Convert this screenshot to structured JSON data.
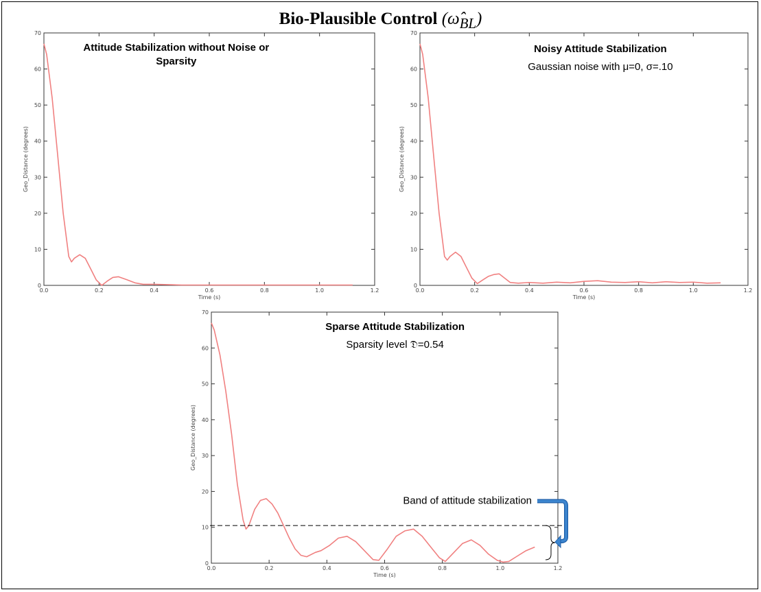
{
  "page": {
    "title_main": "Bio-Plausible Control",
    "title_symbol": "(ω̂",
    "title_subscript": "BL",
    "title_close": ")"
  },
  "chart_data": [
    {
      "type": "line",
      "title": "Attitude Stabilization without Noise or",
      "title_line2": "Sparsity",
      "subtitle": "",
      "xlabel": "Time (s)",
      "ylabel": "Geo_Distance (degrees)",
      "xlim": [
        0,
        1.2
      ],
      "ylim": [
        0,
        70
      ],
      "x_ticks": [
        "0.0",
        "0.2",
        "0.4",
        "0.6",
        "0.8",
        "1.0",
        "1.2"
      ],
      "y_ticks": [
        "0",
        "10",
        "20",
        "30",
        "40",
        "50",
        "60",
        "70"
      ],
      "grid": false,
      "series": [
        {
          "color": "#f08080",
          "x": [
            0,
            0.01,
            0.03,
            0.05,
            0.07,
            0.09,
            0.1,
            0.11,
            0.13,
            0.15,
            0.17,
            0.19,
            0.21,
            0.23,
            0.25,
            0.27,
            0.3,
            0.33,
            0.36,
            0.4,
            0.45,
            0.5,
            0.6,
            0.7,
            0.8,
            0.9,
            1.0,
            1.12
          ],
          "y": [
            67,
            64,
            52,
            36,
            20,
            8,
            6.5,
            7.5,
            8.5,
            7.5,
            4.5,
            1.5,
            0,
            1.2,
            2.2,
            2.4,
            1.6,
            0.7,
            0.3,
            0.3,
            0.2,
            0.1,
            0.1,
            0.1,
            0.1,
            0.1,
            0.1,
            0.1
          ]
        }
      ]
    },
    {
      "type": "line",
      "title": "Noisy Attitude Stabilization",
      "title_line2": "",
      "subtitle": "Gaussian noise with μ=0, σ=.10",
      "xlabel": "Time (s)",
      "ylabel": "Geo_Distance (degrees)",
      "xlim": [
        0,
        1.2
      ],
      "ylim": [
        0,
        70
      ],
      "x_ticks": [
        "0.0",
        "0.2",
        "0.4",
        "0.6",
        "0.8",
        "1.0",
        "1.2"
      ],
      "y_ticks": [
        "0",
        "10",
        "20",
        "30",
        "40",
        "50",
        "60",
        "70"
      ],
      "grid": false,
      "series": [
        {
          "color": "#f08080",
          "x": [
            0,
            0.01,
            0.03,
            0.05,
            0.07,
            0.09,
            0.1,
            0.11,
            0.13,
            0.15,
            0.17,
            0.19,
            0.21,
            0.23,
            0.25,
            0.27,
            0.29,
            0.31,
            0.33,
            0.36,
            0.4,
            0.45,
            0.5,
            0.55,
            0.6,
            0.65,
            0.7,
            0.75,
            0.8,
            0.85,
            0.9,
            0.95,
            1.0,
            1.05,
            1.1
          ],
          "y": [
            67,
            64,
            52,
            36,
            20,
            8,
            7,
            8,
            9.2,
            8,
            5,
            2,
            0.5,
            1.5,
            2.5,
            3,
            3.2,
            2,
            0.8,
            0.6,
            0.8,
            0.6,
            0.9,
            0.7,
            1.1,
            1.3,
            0.9,
            0.8,
            1,
            0.7,
            1,
            0.8,
            0.9,
            0.6,
            0.7
          ]
        }
      ]
    },
    {
      "type": "line",
      "title": "Sparse Attitude Stabilization",
      "title_line2": "",
      "subtitle": "Sparsity level 𝔇=0.54",
      "xlabel": "Time (s)",
      "ylabel": "Geo_Distance (degrees)",
      "xlim": [
        0,
        1.2
      ],
      "ylim": [
        0,
        70
      ],
      "x_ticks": [
        "0.0",
        "0.2",
        "0.4",
        "0.6",
        "0.8",
        "1.0",
        "1.2"
      ],
      "y_ticks": [
        "0",
        "10",
        "20",
        "30",
        "40",
        "50",
        "60",
        "70"
      ],
      "grid": false,
      "annotation": "Band of attitude stabilization",
      "band_y": 10.5,
      "series": [
        {
          "color": "#f08080",
          "x": [
            0,
            0.01,
            0.03,
            0.05,
            0.07,
            0.09,
            0.11,
            0.12,
            0.13,
            0.15,
            0.17,
            0.19,
            0.21,
            0.23,
            0.25,
            0.27,
            0.29,
            0.31,
            0.33,
            0.36,
            0.38,
            0.41,
            0.44,
            0.47,
            0.5,
            0.53,
            0.56,
            0.58,
            0.61,
            0.64,
            0.67,
            0.7,
            0.73,
            0.76,
            0.79,
            0.81,
            0.84,
            0.87,
            0.9,
            0.93,
            0.96,
            0.99,
            1.01,
            1.03,
            1.06,
            1.09,
            1.12
          ],
          "y": [
            67,
            65,
            58,
            48,
            36,
            22,
            12,
            9.5,
            10.5,
            15,
            17.5,
            18,
            16.5,
            14,
            10.5,
            7,
            4,
            2.2,
            1.8,
            3,
            3.5,
            5,
            7,
            7.5,
            6,
            3.5,
            1,
            0.8,
            4,
            7.5,
            9,
            9.5,
            7.5,
            4.5,
            1.5,
            0.5,
            3,
            5.5,
            6.5,
            5,
            2.5,
            0.8,
            0.3,
            0.5,
            2,
            3.5,
            4.5
          ]
        }
      ]
    }
  ]
}
